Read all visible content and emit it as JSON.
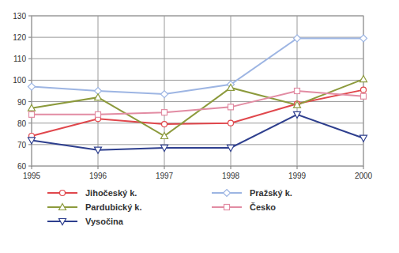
{
  "chart_data": {
    "type": "line",
    "x": [
      1995,
      1996,
      1997,
      1998,
      1999,
      2000
    ],
    "xlim": [
      1995,
      2000
    ],
    "xticks": [
      1995,
      1996,
      1997,
      1998,
      1999,
      2000
    ],
    "ylim": [
      60,
      130
    ],
    "yticks": [
      60,
      70,
      80,
      90,
      100,
      110,
      120,
      130
    ],
    "grid": true,
    "legend": "bottom",
    "series": [
      {
        "name": "Jihočeský k.",
        "color": "#e0474c",
        "marker": "circle",
        "values": [
          74,
          82,
          79.5,
          80,
          89,
          95.5
        ]
      },
      {
        "name": "Pražský k.",
        "color": "#9db5e3",
        "marker": "diamond",
        "values": [
          97,
          95,
          93.5,
          98,
          119.5,
          119.5
        ]
      },
      {
        "name": "Pardubický k.",
        "color": "#8c9a3c",
        "marker": "triangle-up",
        "values": [
          87,
          92,
          74,
          96.5,
          88.5,
          100.5
        ]
      },
      {
        "name": "Česko",
        "color": "#e28ca3",
        "marker": "square",
        "values": [
          84,
          84,
          85,
          87.5,
          95,
          92.5
        ]
      },
      {
        "name": "Vysočina",
        "color": "#2e3f8e",
        "marker": "triangle-down",
        "values": [
          72,
          67.5,
          68.5,
          68.5,
          84,
          73
        ]
      }
    ]
  }
}
